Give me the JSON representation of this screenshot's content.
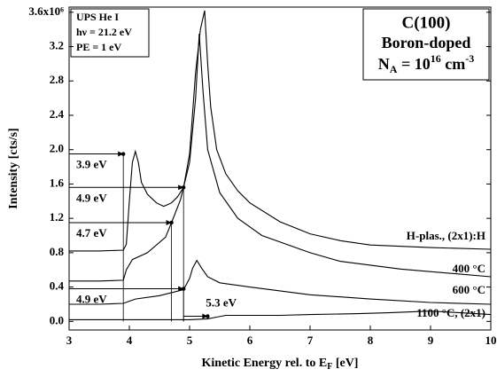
{
  "chart_data": {
    "type": "line",
    "ylabel": "Intensity [cts/s]",
    "xlabel_parts": [
      "Kinetic Energy rel. to E",
      "F",
      " [eV]"
    ],
    "xlim": [
      3,
      10
    ],
    "ylim": [
      -0.1,
      3.66
    ],
    "xticks": [
      3,
      4,
      5,
      6,
      7,
      8,
      9,
      10
    ],
    "yticks": [
      {
        "value": 0,
        "label": "0.0"
      },
      0.4,
      0.8,
      1.2,
      1.6,
      {
        "value": 2,
        "label": "2.0"
      },
      2.4,
      2.8,
      3.2,
      {
        "value": 3.6,
        "label": "3.6x10⁶"
      }
    ],
    "grid": false,
    "info_box": [
      "UPS He I",
      "hν = 21.2 eV",
      "PE = 1 eV"
    ],
    "sample_box": {
      "title": "C(100)",
      "subtitle": "Boron-doped",
      "doping_parts": [
        "N",
        "A",
        " = 10",
        "16",
        " cm",
        "-3"
      ]
    },
    "series": [
      {
        "name": "H-plas., (2x1):H",
        "color": "#000000",
        "x": [
          3,
          3.5,
          3.9,
          3.95,
          4.0,
          4.05,
          4.1,
          4.15,
          4.2,
          4.3,
          4.45,
          4.57,
          4.7,
          4.8,
          4.9,
          5.0,
          5.1,
          5.18,
          5.25,
          5.3,
          5.35,
          5.45,
          5.6,
          5.8,
          6.0,
          6.5,
          7.0,
          7.5,
          8.0,
          9.0,
          10.0
        ],
        "values": [
          0.82,
          0.82,
          0.83,
          0.9,
          1.4,
          1.85,
          1.98,
          1.85,
          1.62,
          1.48,
          1.38,
          1.34,
          1.38,
          1.45,
          1.56,
          1.95,
          2.9,
          3.4,
          3.62,
          3.0,
          2.5,
          2.0,
          1.72,
          1.52,
          1.38,
          1.16,
          1.02,
          0.94,
          0.89,
          0.86,
          0.84
        ]
      },
      {
        "name": "400 °C",
        "color": "#000000",
        "x": [
          3,
          3.5,
          3.9,
          3.95,
          4.05,
          4.3,
          4.6,
          4.7,
          4.85,
          5.0,
          5.1,
          5.16,
          5.22,
          5.3,
          5.5,
          5.8,
          6.2,
          7.0,
          7.5,
          8.5,
          9.5,
          10.0
        ],
        "values": [
          0.47,
          0.47,
          0.48,
          0.6,
          0.72,
          0.8,
          0.98,
          1.15,
          1.42,
          1.85,
          2.6,
          3.35,
          2.7,
          2.0,
          1.5,
          1.2,
          1.0,
          0.8,
          0.7,
          0.61,
          0.55,
          0.52
        ]
      },
      {
        "name": "600 °C",
        "color": "#000000",
        "x": [
          3,
          3.5,
          3.9,
          4.1,
          4.5,
          4.9,
          5.0,
          5.05,
          5.12,
          5.2,
          5.3,
          5.5,
          6.0,
          7.0,
          8.0,
          9.0,
          10.0
        ],
        "values": [
          0.2,
          0.2,
          0.21,
          0.26,
          0.3,
          0.37,
          0.5,
          0.62,
          0.71,
          0.62,
          0.52,
          0.45,
          0.4,
          0.31,
          0.26,
          0.22,
          0.2
        ]
      },
      {
        "name": "1100 °C, (2x1)",
        "color": "#000000",
        "x": [
          3,
          4,
          5,
          5.3,
          5.45,
          5.6,
          6.5,
          7.0,
          7.8,
          8.3,
          9.0,
          9.5,
          10.0
        ],
        "values": [
          0.02,
          0.02,
          0.02,
          0.03,
          0.05,
          0.07,
          0.07,
          0.08,
          0.09,
          0.1,
          0.12,
          0.1,
          0.08
        ]
      }
    ],
    "annotations": [
      {
        "text": "3.9 eV",
        "x": 3.9,
        "y": 1.95,
        "x0": 3
      },
      {
        "text": "4.9 eV",
        "x": 4.9,
        "y": 1.56,
        "x0": 3
      },
      {
        "text": "4.7 eV",
        "x": 4.7,
        "y": 1.15,
        "x0": 3
      },
      {
        "text": "4.9 eV",
        "x": 4.9,
        "y": 0.38,
        "x0": 3
      },
      {
        "text": "5.3 eV",
        "x": 5.3,
        "y": 0.06,
        "x0": 4.9
      }
    ]
  }
}
